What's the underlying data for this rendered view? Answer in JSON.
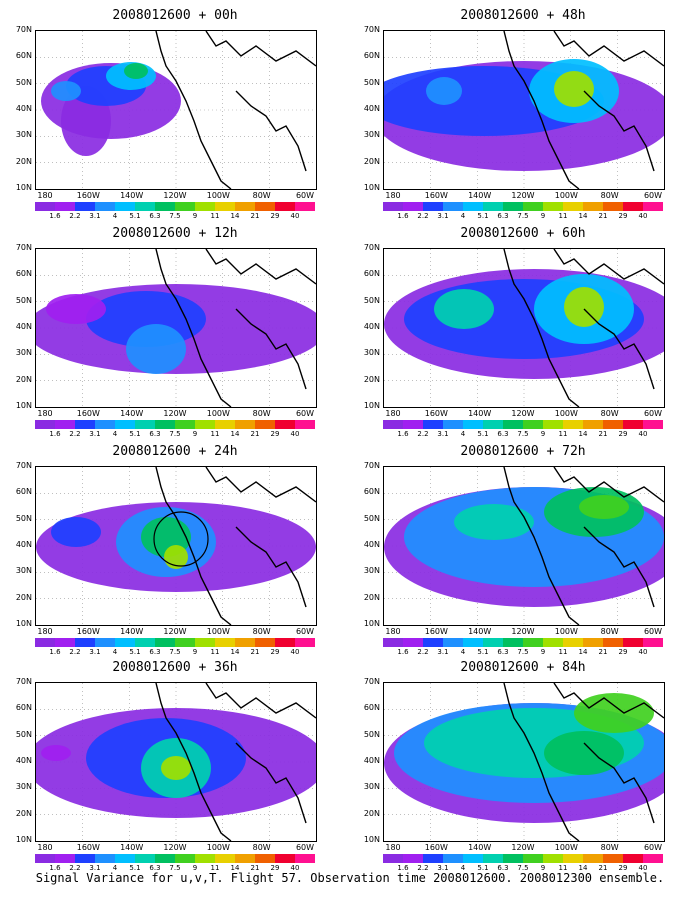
{
  "caption": "Signal Variance for u,v,T. Flight 57. Observation time 2008012600. 2008012300 ensemble.",
  "lat_labels": [
    "70N",
    "60N",
    "50N",
    "40N",
    "30N",
    "20N",
    "10N"
  ],
  "lon_labels": [
    "180",
    "160W",
    "140W",
    "120W",
    "100W",
    "80W",
    "60W"
  ],
  "colorbar": {
    "labels": [
      "1.6",
      "2.2",
      "3.1",
      "4",
      "5.1",
      "6.3",
      "7.5",
      "9",
      "11",
      "14",
      "21",
      "29",
      "40"
    ],
    "colors": [
      "#8a2be2",
      "#a020f0",
      "#1e40ff",
      "#1e90ff",
      "#00bfff",
      "#00d0b0",
      "#00c060",
      "#40d020",
      "#a0e000",
      "#e8d000",
      "#f0a000",
      "#f06000",
      "#f00030",
      "#ff1090"
    ]
  },
  "panels": [
    {
      "title": "2008012600 + 00h"
    },
    {
      "title": "2008012600 + 48h"
    },
    {
      "title": "2008012600 + 12h"
    },
    {
      "title": "2008012600 + 60h"
    },
    {
      "title": "2008012600 + 24h"
    },
    {
      "title": "2008012600 + 72h"
    },
    {
      "title": "2008012600 + 36h"
    },
    {
      "title": "2008012600 + 84h"
    }
  ]
}
